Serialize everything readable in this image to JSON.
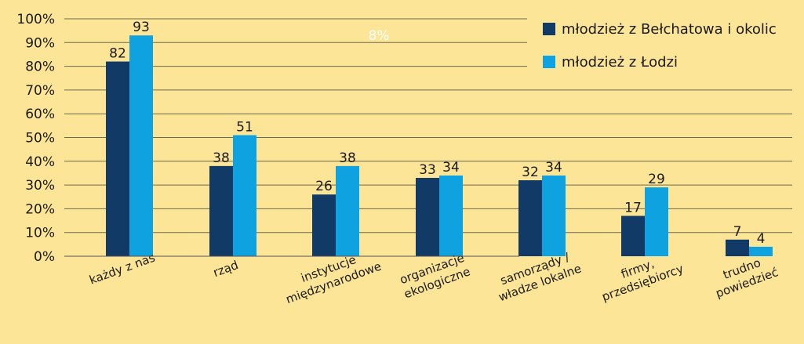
{
  "chart_data": {
    "type": "bar",
    "categories": [
      [
        "każdy z nas"
      ],
      [
        "rząd"
      ],
      [
        "instytucje",
        "międzynarodowe"
      ],
      [
        "organizacje",
        "ekologiczne"
      ],
      [
        "samorządy /",
        "władze lokalne"
      ],
      [
        "firmy,",
        "przedsiębiorcy"
      ],
      [
        "trudno",
        "powiedzieć"
      ]
    ],
    "series": [
      {
        "name": "młodzież z Bełchatowa i okolic",
        "color": "#123a66",
        "values": [
          82,
          38,
          26,
          33,
          32,
          17,
          7
        ]
      },
      {
        "name": "młodzież z Łodzi",
        "color": "#0ea3e0",
        "values": [
          93,
          51,
          38,
          34,
          34,
          29,
          4
        ]
      }
    ],
    "ylim": [
      0,
      100
    ],
    "yticks": [
      "0%",
      "10%",
      "20%",
      "30%",
      "40%",
      "50%",
      "60%",
      "70%",
      "80%",
      "90%",
      "100%"
    ],
    "annotation": "8%",
    "grid": true,
    "legend_position": "top-right"
  }
}
